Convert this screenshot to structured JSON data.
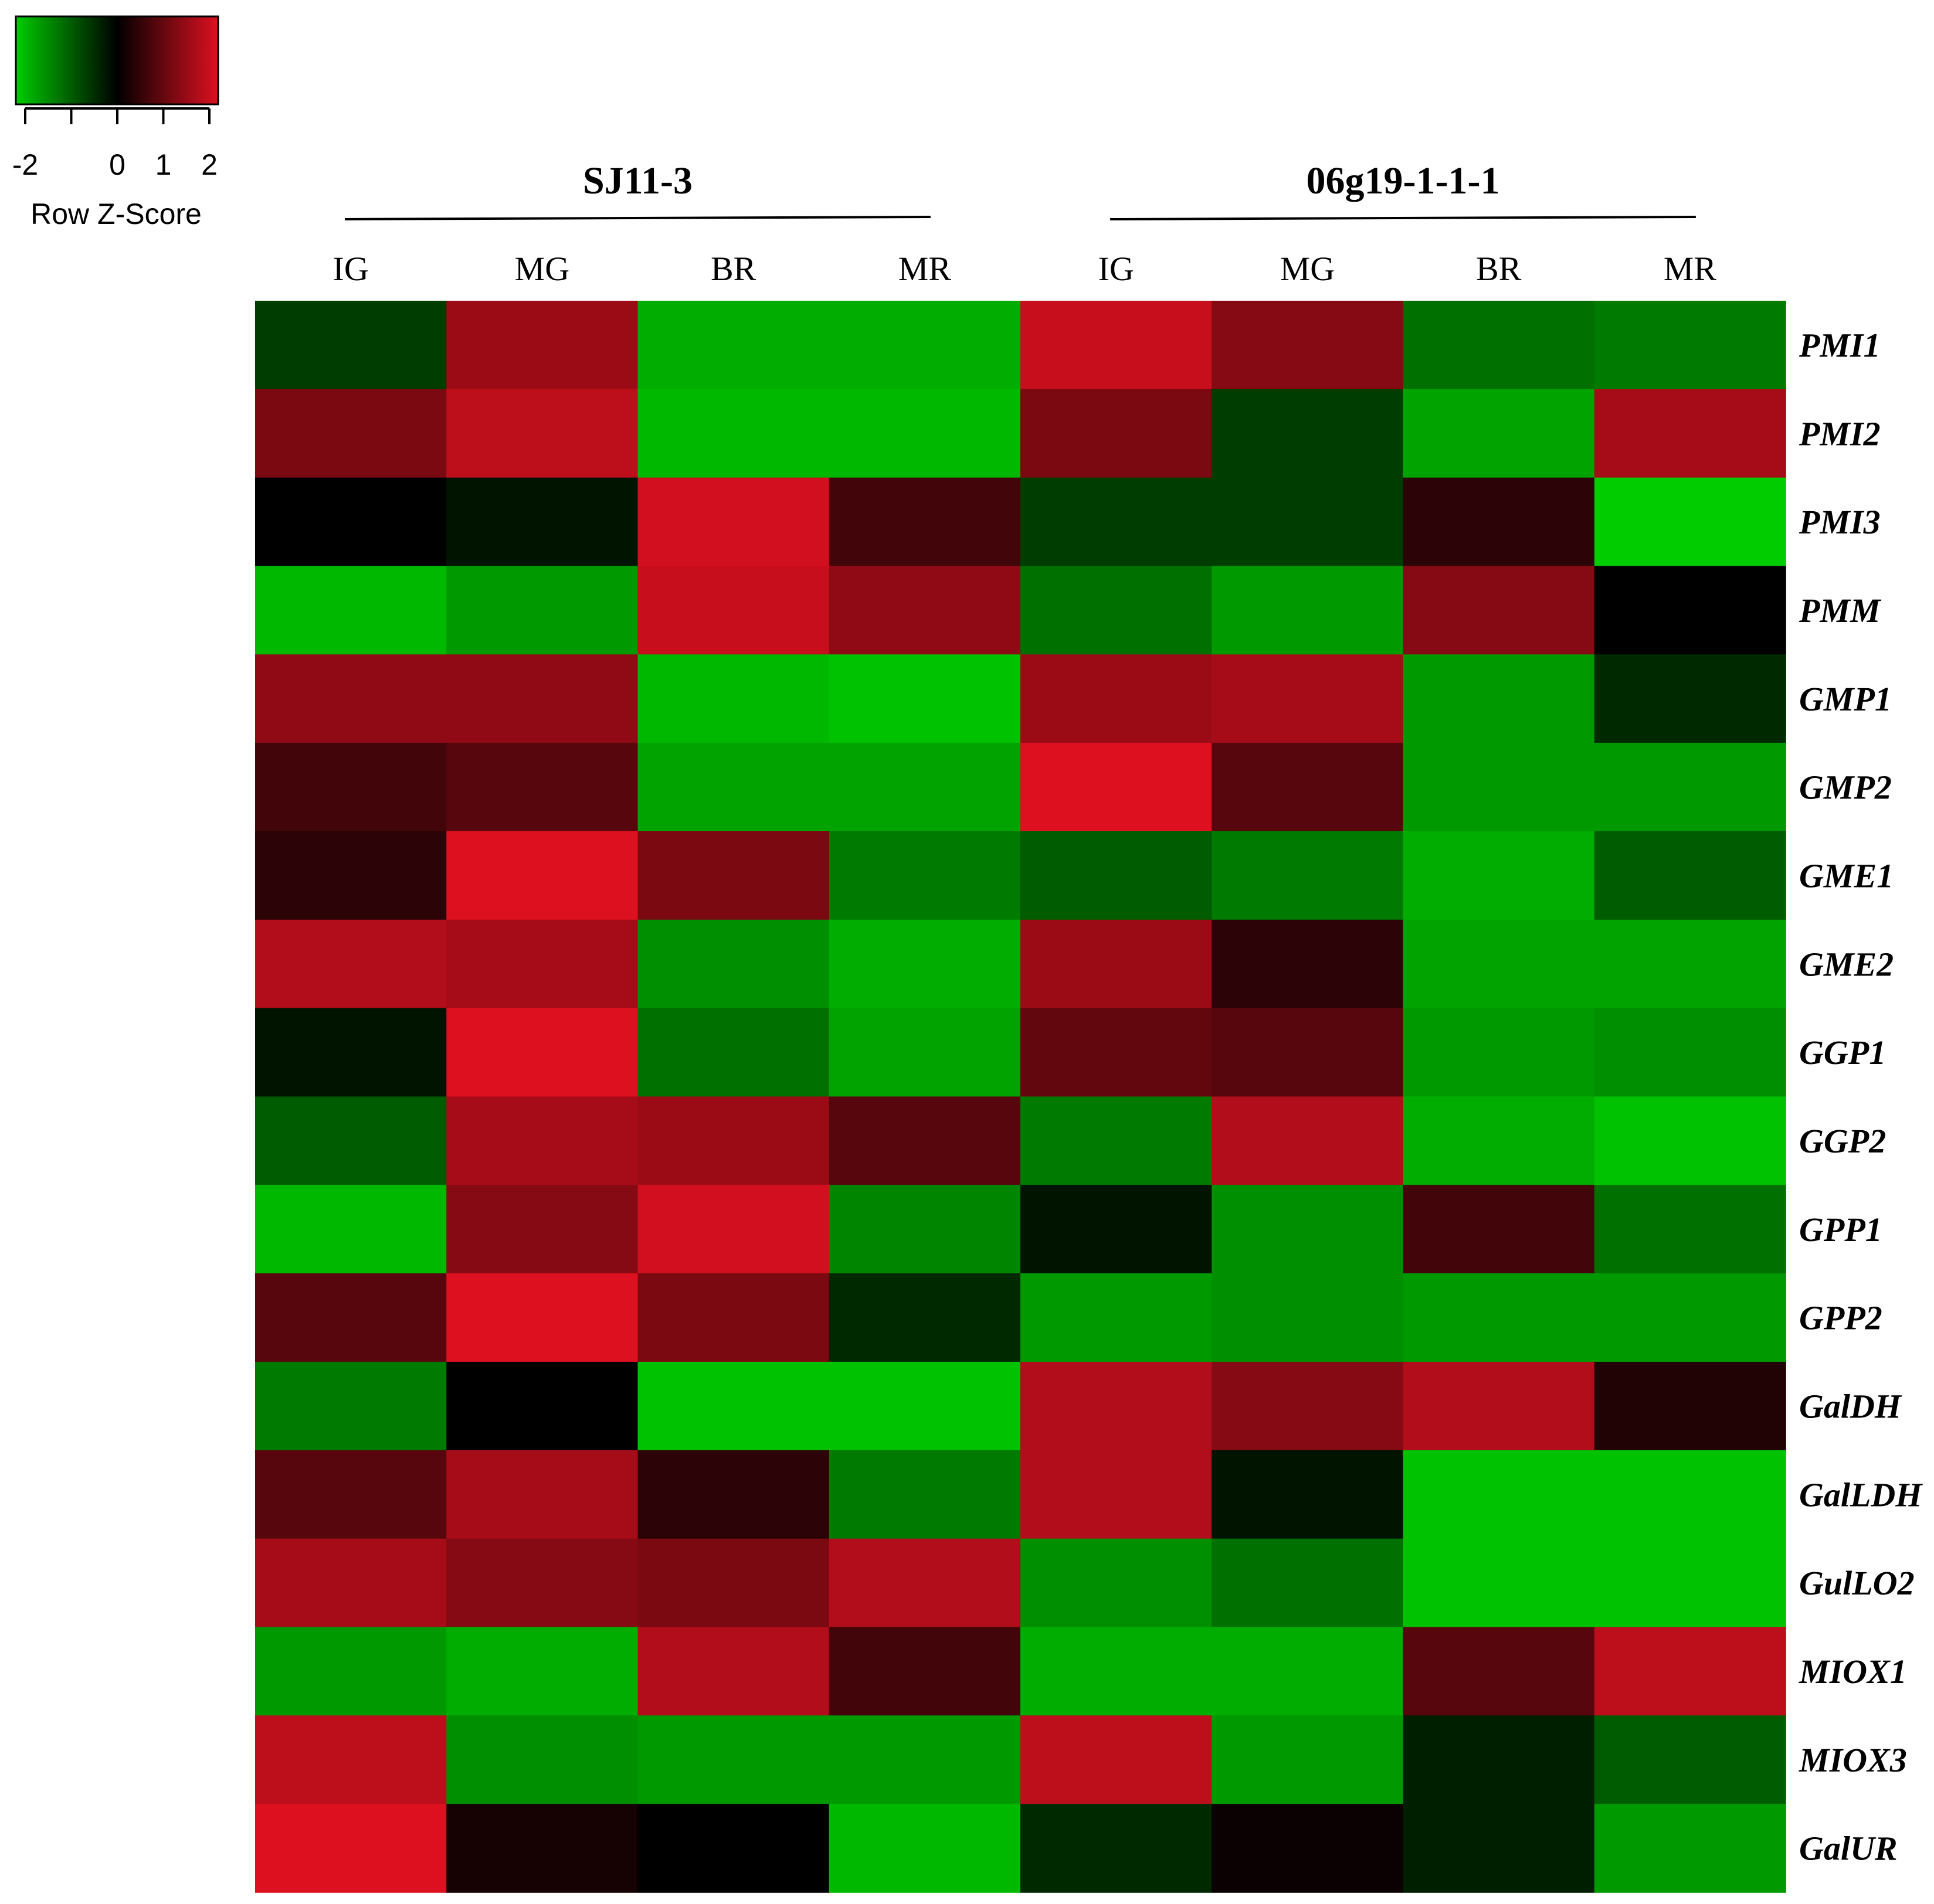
{
  "chart_data": {
    "type": "heatmap",
    "color_key": {
      "label": "Row Z-Score",
      "ticks": [
        "-2",
        "0",
        "1",
        "2"
      ],
      "range": [
        -2,
        2
      ],
      "low_color": "#00cc00",
      "mid_color": "#000000",
      "high_color": "#dd1020"
    },
    "groups": [
      {
        "label": "SJ11-3",
        "columns": [
          "IG",
          "MG",
          "BR",
          "MR"
        ]
      },
      {
        "label": "06g19-1-1-1",
        "columns": [
          "IG",
          "MG",
          "BR",
          "MR"
        ]
      }
    ],
    "columns": [
      "IG",
      "MG",
      "BR",
      "MR",
      "IG",
      "MG",
      "BR",
      "MR"
    ],
    "rows": [
      "PMI1",
      "PMI2",
      "PMI3",
      "PMM",
      "GMP1",
      "GMP2",
      "GME1",
      "GME2",
      "GGP1",
      "GGP2",
      "GPP1",
      "GPP2",
      "GalDH",
      "GalLDH",
      "GulLO2",
      "MIOX1",
      "MIOX3",
      "GalUR"
    ],
    "values": [
      [
        -0.6,
        1.4,
        -1.7,
        -1.7,
        1.8,
        1.2,
        -1.1,
        -1.2
      ],
      [
        1.1,
        1.7,
        -1.8,
        -1.8,
        1.1,
        -0.6,
        -1.6,
        1.5
      ],
      [
        0.0,
        -0.2,
        1.9,
        0.6,
        -0.6,
        -0.6,
        0.4,
        -2.0
      ],
      [
        -1.8,
        -1.5,
        1.8,
        1.3,
        -1.1,
        -1.5,
        1.2,
        0.0
      ],
      [
        1.3,
        1.3,
        -1.8,
        -1.9,
        1.4,
        1.5,
        -1.5,
        -0.4
      ],
      [
        0.6,
        0.8,
        -1.6,
        -1.6,
        2.0,
        0.8,
        -1.5,
        -1.5
      ],
      [
        0.4,
        2.0,
        1.1,
        -1.2,
        -0.9,
        -1.2,
        -1.7,
        -0.9
      ],
      [
        1.6,
        1.5,
        -1.4,
        -1.7,
        1.4,
        0.4,
        -1.6,
        -1.6
      ],
      [
        -0.2,
        2.0,
        -1.1,
        -1.6,
        0.9,
        0.8,
        -1.5,
        -1.4
      ],
      [
        -0.9,
        1.5,
        1.4,
        0.8,
        -1.2,
        1.6,
        -1.7,
        -1.9
      ],
      [
        -1.8,
        1.2,
        1.9,
        -1.3,
        -0.2,
        -1.4,
        0.6,
        -1.1
      ],
      [
        0.8,
        2.0,
        1.1,
        -0.4,
        -1.5,
        -1.4,
        -1.5,
        -1.5
      ],
      [
        -1.2,
        0.0,
        -1.9,
        -1.9,
        1.6,
        1.2,
        1.6,
        0.3
      ],
      [
        0.8,
        1.5,
        0.4,
        -1.2,
        1.6,
        -0.2,
        -1.9,
        -1.9
      ],
      [
        1.5,
        1.2,
        1.1,
        1.6,
        -1.4,
        -1.1,
        -1.9,
        -1.9
      ],
      [
        -1.5,
        -1.7,
        1.6,
        0.6,
        -1.7,
        -1.7,
        0.8,
        1.7
      ],
      [
        1.7,
        -1.4,
        -1.5,
        -1.5,
        1.7,
        -1.5,
        -0.3,
        -0.9
      ],
      [
        2.0,
        0.2,
        0.0,
        -1.8,
        -0.4,
        0.1,
        -0.3,
        -1.5
      ]
    ]
  }
}
